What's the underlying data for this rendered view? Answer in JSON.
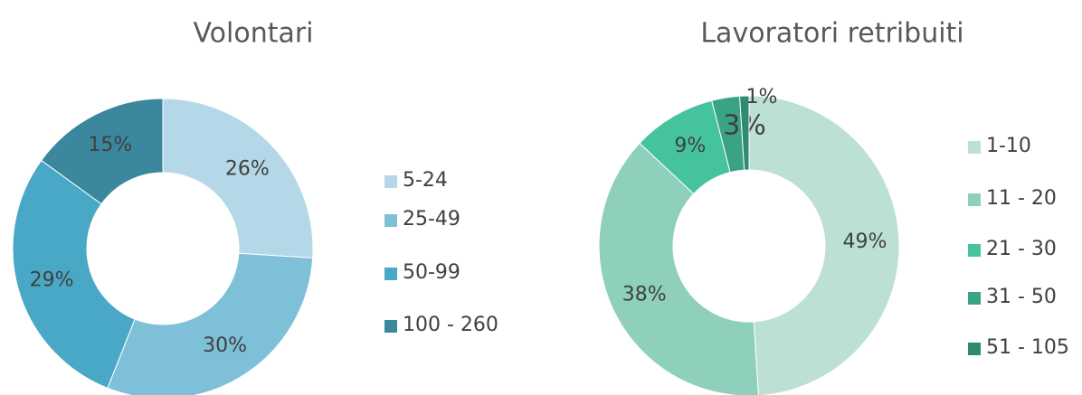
{
  "chart_data": [
    {
      "type": "donut",
      "title": "Volontari",
      "categories": [
        "5-24",
        "25-49",
        "50-99",
        "100 - 260"
      ],
      "values": [
        26,
        30,
        29,
        15
      ],
      "value_labels": [
        "26%",
        "30%",
        "29%",
        "15%"
      ],
      "colors": [
        "#b5d8e8",
        "#7fc0d9",
        "#4aa8c7",
        "#3a879e"
      ],
      "legend": "right"
    },
    {
      "type": "donut",
      "title": "Lavoratori retribuiti",
      "categories": [
        "1-10",
        "11 - 20",
        "21 - 30",
        "31 - 50",
        "51 - 105"
      ],
      "values": [
        49,
        38,
        9,
        3,
        1
      ],
      "value_labels": [
        "49%",
        "38%",
        "9%",
        "3%",
        "1%"
      ],
      "colors": [
        "#bce0d3",
        "#8fd0bc",
        "#45c39f",
        "#3aa386",
        "#2e8a70"
      ],
      "legend": "right"
    }
  ]
}
